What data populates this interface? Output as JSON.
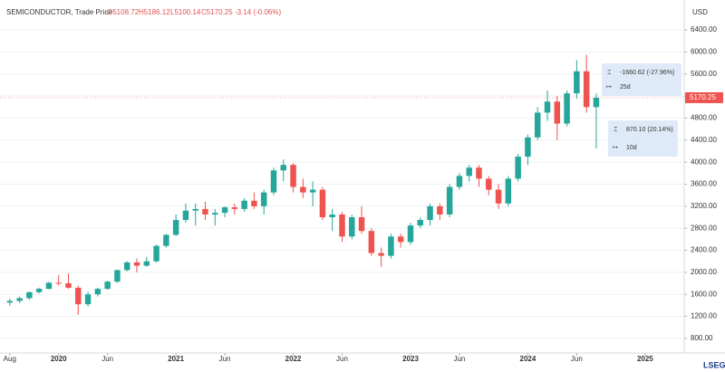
{
  "chart_data": {
    "type": "candlestick",
    "header": {
      "name": "SEMICONDUCTOR, Trade Price",
      "open": "O5108.72",
      "high": "H5186.12",
      "low": "L5100.14",
      "close": "C5170.25",
      "change": "-3.14 (-0.06%)"
    },
    "currency": "USD",
    "last_price": 5170.25,
    "brand": "LSEG",
    "up_color": "#26a69a",
    "down_color": "#ef5350",
    "x": [
      "2019-08",
      "2019-09",
      "2019-10",
      "2019-11",
      "2019-12",
      "2020-01",
      "2020-02",
      "2020-03",
      "2020-04",
      "2020-05",
      "2020-06",
      "2020-07",
      "2020-08",
      "2020-09",
      "2020-10",
      "2020-11",
      "2020-12",
      "2021-01",
      "2021-02",
      "2021-03",
      "2021-04",
      "2021-05",
      "2021-06",
      "2021-07",
      "2021-08",
      "2021-09",
      "2021-10",
      "2021-11",
      "2021-12",
      "2022-01",
      "2022-02",
      "2022-03",
      "2022-04",
      "2022-05",
      "2022-06",
      "2022-07",
      "2022-08",
      "2022-09",
      "2022-10",
      "2022-11",
      "2022-12",
      "2023-01",
      "2023-02",
      "2023-03",
      "2023-04",
      "2023-05",
      "2023-06",
      "2023-07",
      "2023-08",
      "2023-09",
      "2023-10",
      "2023-11",
      "2023-12",
      "2024-01",
      "2024-02",
      "2024-03",
      "2024-04",
      "2024-05",
      "2024-06",
      "2024-07",
      "2024-08"
    ],
    "open": [
      1450,
      1480,
      1530,
      1640,
      1700,
      1810,
      1800,
      1720,
      1420,
      1600,
      1700,
      1830,
      2040,
      2180,
      2120,
      2200,
      2480,
      2680,
      2950,
      3120,
      3150,
      3050,
      3080,
      3180,
      3150,
      3300,
      3200,
      3450,
      3850,
      3950,
      3550,
      3450,
      3500,
      3000,
      3050,
      2650,
      3000,
      2750,
      2350,
      2300,
      2650,
      2550,
      2850,
      2950,
      3200,
      3050,
      3550,
      3750,
      3900,
      3700,
      3500,
      3250,
      3700,
      4100,
      4450,
      4900,
      5100,
      4700,
      5250,
      5650,
      5000
    ],
    "high": [
      1520,
      1560,
      1650,
      1720,
      1830,
      1950,
      1980,
      1760,
      1650,
      1720,
      1850,
      2050,
      2200,
      2250,
      2280,
      2500,
      2700,
      3050,
      3250,
      3250,
      3280,
      3150,
      3200,
      3250,
      3350,
      3450,
      3500,
      3900,
      4050,
      3980,
      3700,
      3650,
      3550,
      3150,
      3100,
      3050,
      3200,
      2800,
      2450,
      2700,
      2700,
      2900,
      3000,
      3250,
      3250,
      3600,
      3800,
      3950,
      3950,
      3750,
      3600,
      3750,
      4150,
      4500,
      5000,
      5300,
      5200,
      5300,
      5850,
      5950,
      5250
    ],
    "low": [
      1390,
      1440,
      1500,
      1620,
      1690,
      1760,
      1700,
      1230,
      1380,
      1560,
      1680,
      1810,
      2020,
      2000,
      2100,
      2180,
      2450,
      2660,
      2900,
      2850,
      2950,
      2850,
      3000,
      3050,
      3100,
      3150,
      3050,
      3400,
      3650,
      3450,
      3350,
      3200,
      2950,
      2750,
      2550,
      2600,
      2700,
      2300,
      2100,
      2250,
      2450,
      2500,
      2800,
      2850,
      2950,
      3000,
      3500,
      3650,
      3550,
      3400,
      3150,
      3200,
      3650,
      3950,
      4400,
      4750,
      4400,
      4650,
      5150,
      4900,
      4250
    ],
    "close": [
      1480,
      1530,
      1640,
      1700,
      1810,
      1800,
      1720,
      1420,
      1600,
      1700,
      1830,
      2040,
      2180,
      2120,
      2200,
      2480,
      2680,
      2950,
      3120,
      3150,
      3050,
      3080,
      3180,
      3150,
      3300,
      3200,
      3450,
      3850,
      3950,
      3550,
      3450,
      3500,
      3000,
      3050,
      2650,
      3000,
      2750,
      2350,
      2300,
      2650,
      2550,
      2850,
      2950,
      3200,
      3050,
      3550,
      3750,
      3900,
      3700,
      3500,
      3250,
      3700,
      4100,
      4450,
      4900,
      5100,
      4700,
      5250,
      5650,
      5000,
      5170
    ],
    "xlim": [
      "2019-07",
      "2025-05"
    ],
    "xticks": [
      {
        "value": "2019-08",
        "label": "Aug"
      },
      {
        "value": "2020-01",
        "label": "2020"
      },
      {
        "value": "2020-06",
        "label": "Jun"
      },
      {
        "value": "2021-01",
        "label": "2021"
      },
      {
        "value": "2021-06",
        "label": "Jun"
      },
      {
        "value": "2022-01",
        "label": "2022"
      },
      {
        "value": "2022-06",
        "label": "Jun"
      },
      {
        "value": "2023-01",
        "label": "2023"
      },
      {
        "value": "2023-06",
        "label": "Jun"
      },
      {
        "value": "2024-01",
        "label": "2024"
      },
      {
        "value": "2024-06",
        "label": "Jun"
      },
      {
        "value": "2025-01",
        "label": "2025"
      }
    ],
    "ylim": [
      650,
      6780
    ],
    "yticks": [
      {
        "value": 800,
        "label": "800.00"
      },
      {
        "value": 1200,
        "label": "1200.00"
      },
      {
        "value": 1600,
        "label": "1600.00"
      },
      {
        "value": 2000,
        "label": "2000.00"
      },
      {
        "value": 2400,
        "label": "2400.00"
      },
      {
        "value": 2800,
        "label": "2800.00"
      },
      {
        "value": 3200,
        "label": "3200.00"
      },
      {
        "value": 3600,
        "label": "3600.00"
      },
      {
        "value": 4000,
        "label": "4000.00"
      },
      {
        "value": 4400,
        "label": "4400.00"
      },
      {
        "value": 4800,
        "label": "4800.00"
      },
      {
        "value": 5200,
        "label": "5200.00"
      },
      {
        "value": 5600,
        "label": "5600.00"
      },
      {
        "value": 6000,
        "label": "6000.00"
      },
      {
        "value": 6400,
        "label": "6400.00"
      }
    ],
    "grid": true,
    "measures": [
      {
        "change": "-1660.62 (-27.96%)",
        "duration": "25d"
      },
      {
        "change": "870.10 (20.14%)",
        "duration": "10d"
      }
    ]
  }
}
